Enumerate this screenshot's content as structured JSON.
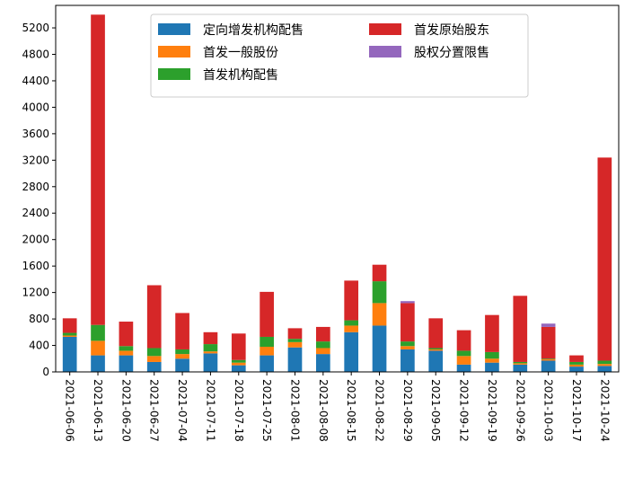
{
  "chart_data": {
    "type": "bar",
    "stacked": true,
    "categories": [
      "2021-06-06",
      "2021-06-13",
      "2021-06-20",
      "2021-06-27",
      "2021-07-04",
      "2021-07-11",
      "2021-07-18",
      "2021-07-25",
      "2021-08-01",
      "2021-08-08",
      "2021-08-15",
      "2021-08-22",
      "2021-08-29",
      "2021-09-05",
      "2021-09-12",
      "2021-09-19",
      "2021-09-26",
      "2021-10-03",
      "2021-10-17",
      "2021-10-24"
    ],
    "series": [
      {
        "name": "定向增发机构配售",
        "color": "#1f77b4",
        "values": [
          530,
          250,
          250,
          150,
          200,
          280,
          100,
          250,
          370,
          270,
          600,
          700,
          340,
          320,
          110,
          140,
          110,
          170,
          80,
          90
        ]
      },
      {
        "name": "首发一般股份",
        "color": "#ff7f0e",
        "values": [
          20,
          220,
          70,
          90,
          70,
          30,
          40,
          130,
          80,
          90,
          100,
          340,
          50,
          20,
          130,
          60,
          20,
          20,
          30,
          30
        ]
      },
      {
        "name": "首发机构配售",
        "color": "#2ca02c",
        "values": [
          40,
          240,
          70,
          120,
          70,
          110,
          40,
          150,
          50,
          100,
          80,
          330,
          70,
          20,
          80,
          100,
          20,
          10,
          40,
          50
        ]
      },
      {
        "name": "首发原始股东",
        "color": "#d62728",
        "values": [
          220,
          4690,
          370,
          950,
          550,
          180,
          400,
          680,
          160,
          220,
          600,
          250,
          580,
          450,
          310,
          560,
          1000,
          480,
          100,
          3070
        ]
      },
      {
        "name": "股权分置限售",
        "color": "#9467bd",
        "values": [
          0,
          0,
          0,
          0,
          0,
          0,
          0,
          0,
          0,
          0,
          0,
          0,
          30,
          0,
          0,
          0,
          0,
          50,
          0,
          0
        ]
      }
    ],
    "yticks": [
      0,
      400,
      800,
      1200,
      1600,
      2000,
      2400,
      2800,
      3200,
      3600,
      4000,
      4400,
      4800,
      5200
    ],
    "ylim": [
      0,
      5540
    ],
    "grid": false,
    "legend": "top-center, two columns"
  }
}
